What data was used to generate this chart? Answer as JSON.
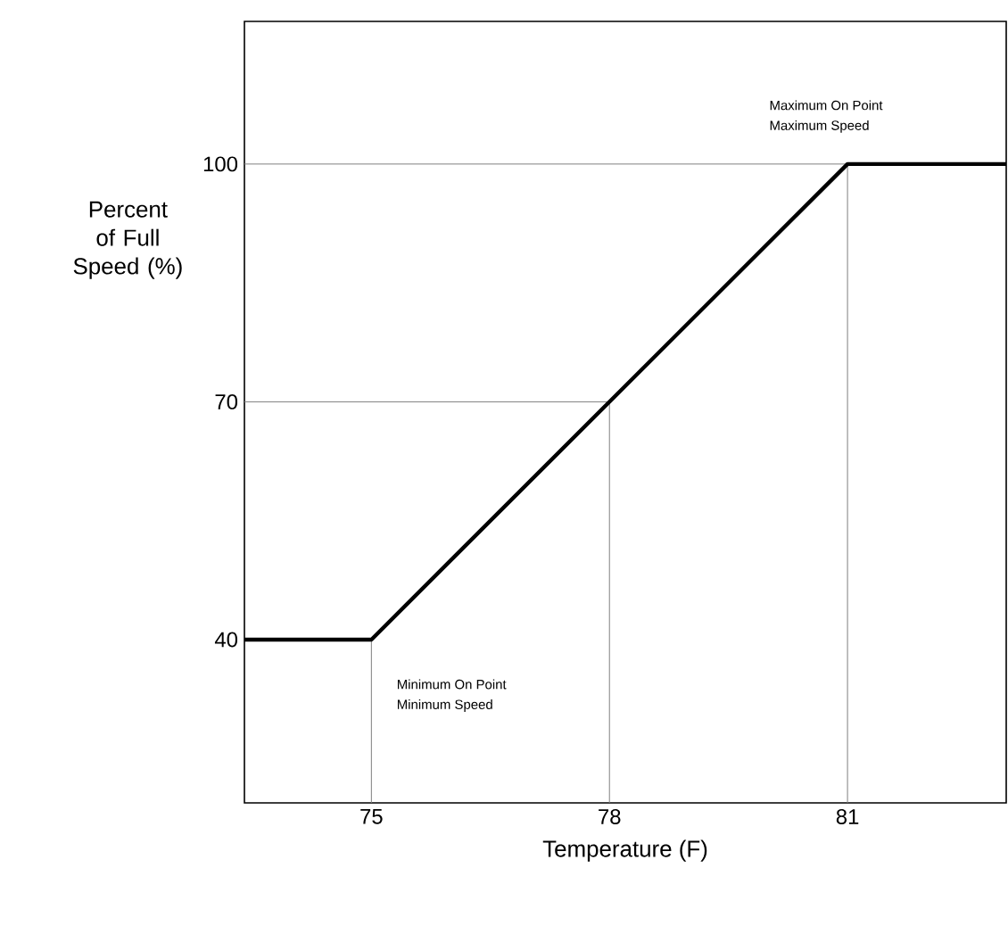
{
  "chart_data": {
    "type": "line",
    "xlabel": "Temperature (F)",
    "ylabel": "Percent of Full Speed (%)",
    "x": [
      73.4,
      75,
      81,
      83
    ],
    "series": [
      {
        "color": "#000000",
        "values": [
          40,
          40,
          100,
          100
        ]
      }
    ],
    "xlim": [
      73.4,
      83
    ],
    "ylim": [
      19.4,
      118
    ],
    "xticks": [
      75,
      78,
      81
    ],
    "yticks": [
      40,
      70,
      100
    ],
    "ref_lines": [
      {
        "axis": "x",
        "value": 75,
        "color": "#808080"
      },
      {
        "axis": "x",
        "value": 78,
        "color": "#808080"
      },
      {
        "axis": "x",
        "value": 81,
        "color": "#808080"
      },
      {
        "axis": "y",
        "value": 70,
        "color": "#808080"
      },
      {
        "axis": "y",
        "value": 100,
        "color": "#808080"
      }
    ],
    "annotations": [
      "Minimum On Point",
      "Minimum Speed",
      "Maximum On Point",
      "Maximum Speed"
    ],
    "grid": false,
    "marker": "none",
    "line_style": "solid"
  }
}
